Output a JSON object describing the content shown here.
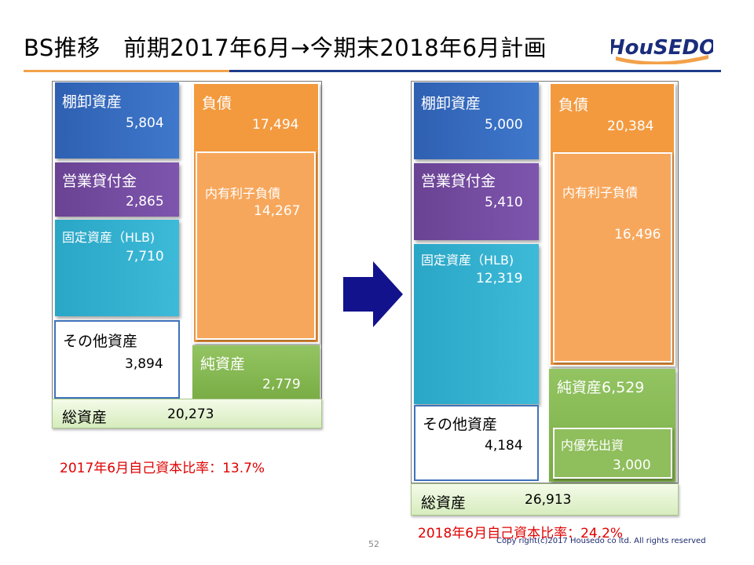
{
  "title": "BS推移　前期2017年6月→今期末2018年6月計画",
  "logo_text": "HouSEDO",
  "colors": {
    "title_rule_orange": "#F2A14A",
    "title_rule_navy": "#1F3C8A",
    "ratio_text": "#E00000",
    "arrow": "#12128C"
  },
  "left": {
    "inventory": {
      "label": "棚卸資産",
      "value": "5,804"
    },
    "loans": {
      "label": "営業貸付金",
      "value": "2,865"
    },
    "fixed": {
      "label": "固定資産（HLB)",
      "value": "7,710"
    },
    "other": {
      "label": "その他資産",
      "value": "3,894"
    },
    "liabilities": {
      "label": "負債",
      "value": "17,494"
    },
    "interest_debt": {
      "label": "内有利子負債",
      "value": "14,267"
    },
    "net_assets": {
      "label": "純資産",
      "value": "2,779"
    },
    "total": {
      "label": "総資産",
      "value": "20,273"
    },
    "ratio": "2017年6月自己資本比率：13.7%"
  },
  "right": {
    "inventory": {
      "label": "棚卸資産",
      "value": "5,000"
    },
    "loans": {
      "label": "営業貸付金",
      "value": "5,410"
    },
    "fixed": {
      "label": "固定資産（HLB)",
      "value": "12,319"
    },
    "other": {
      "label": "その他資産",
      "value": "4,184"
    },
    "liabilities": {
      "label": "負債",
      "value": "20,384"
    },
    "interest_debt": {
      "label": "内有利子負債",
      "value": "16,496"
    },
    "net_assets": {
      "label": "純資産6,529"
    },
    "preferred": {
      "label": "内優先出資",
      "value": "3,000"
    },
    "total": {
      "label": "総資産",
      "value": "26,913"
    },
    "ratio": "2018年6月自己資本比率：24.2%"
  },
  "footer": {
    "page": "52",
    "copyright": "Copy right(c)2017 Housedo co ltd. All rights reserved"
  }
}
